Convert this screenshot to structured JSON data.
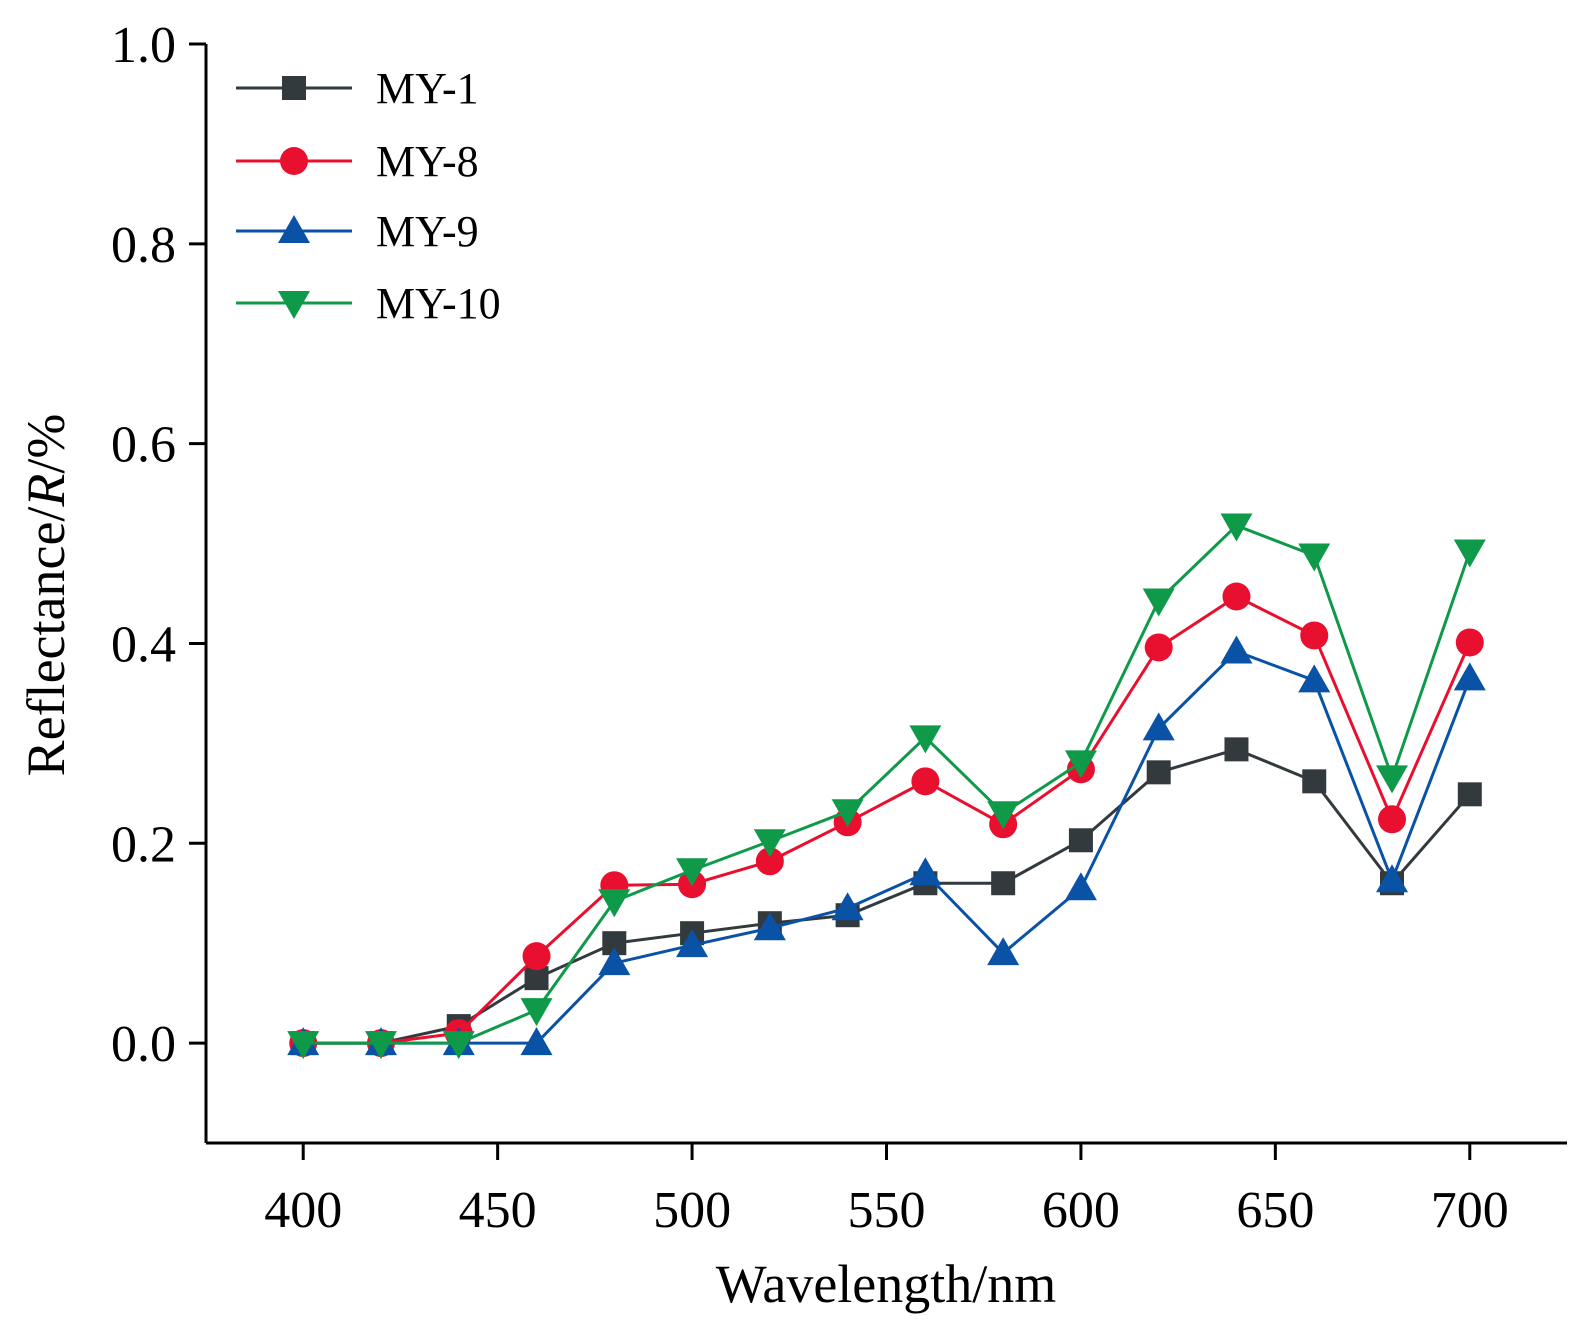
{
  "chart_data": {
    "type": "line",
    "title": "",
    "xlabel": "Wavelength/nm",
    "ylabel": {
      "prefix": "Reflectance/",
      "italic": "R",
      "suffix": "/%"
    },
    "xlim": [
      375,
      725
    ],
    "ylim": [
      -0.1,
      1.0
    ],
    "xticks": [
      400,
      450,
      500,
      550,
      600,
      650,
      700
    ],
    "xtick_labels": [
      "400",
      "450",
      "500",
      "550",
      "600",
      "650",
      "700"
    ],
    "yticks": [
      0.0,
      0.2,
      0.4,
      0.6,
      0.8,
      1.0
    ],
    "ytick_labels": [
      "0.0",
      "0.2",
      "0.4",
      "0.6",
      "0.8",
      "1.0"
    ],
    "grid": false,
    "legend_position": "top-left",
    "x": [
      400,
      420,
      440,
      460,
      480,
      500,
      520,
      540,
      560,
      580,
      600,
      620,
      640,
      660,
      680,
      700
    ],
    "series": [
      {
        "name": "MY-1",
        "color": "#333a3d",
        "marker": "square",
        "values": [
          0.0,
          0.0,
          0.017,
          0.065,
          0.1,
          0.11,
          0.12,
          0.128,
          0.16,
          0.16,
          0.203,
          0.271,
          0.294,
          0.262,
          0.16,
          0.249
        ]
      },
      {
        "name": "MY-8",
        "color": "#e8102e",
        "marker": "circle",
        "values": [
          0.0,
          0.0,
          0.01,
          0.087,
          0.158,
          0.159,
          0.182,
          0.221,
          0.262,
          0.219,
          0.274,
          0.396,
          0.447,
          0.408,
          0.224,
          0.401
        ]
      },
      {
        "name": "MY-9",
        "color": "#0a52a6",
        "marker": "triangle-up",
        "values": [
          0.0,
          0.0,
          0.0,
          0.0,
          0.08,
          0.098,
          0.115,
          0.135,
          0.17,
          0.09,
          0.155,
          0.315,
          0.392,
          0.363,
          0.163,
          0.365
        ]
      },
      {
        "name": "MY-10",
        "color": "#0f9a4a",
        "marker": "triangle-down",
        "values": [
          0.0,
          0.0,
          0.0,
          0.033,
          0.142,
          0.173,
          0.202,
          0.232,
          0.306,
          0.23,
          0.281,
          0.443,
          0.518,
          0.488,
          0.266,
          0.492
        ]
      }
    ]
  }
}
